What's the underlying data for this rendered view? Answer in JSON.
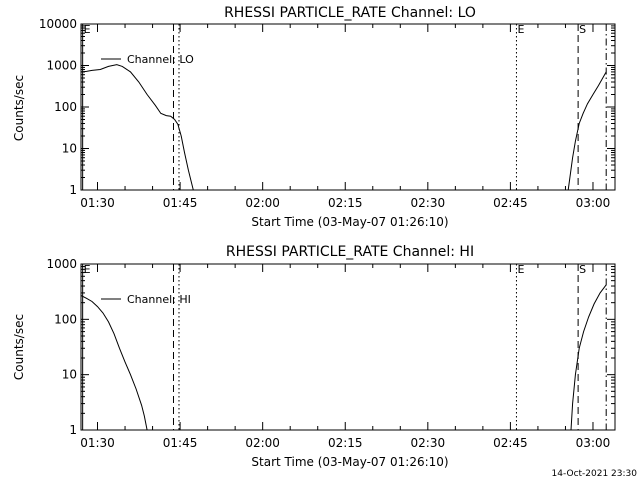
{
  "chart_data": [
    {
      "type": "line",
      "title": "RHESSI PARTICLE_RATE Channel: LO",
      "xlabel": "Start Time (03-May-07 01:26:10)",
      "ylabel": "Counts/sec",
      "yscale": "log",
      "ylim": [
        1,
        10000
      ],
      "xlim_minutes": [
        87,
        184
      ],
      "x_ticks": [
        {
          "label": "01:30",
          "min": 90
        },
        {
          "label": "01:45",
          "min": 105
        },
        {
          "label": "02:00",
          "min": 120
        },
        {
          "label": "02:15",
          "min": 135
        },
        {
          "label": "02:30",
          "min": 150
        },
        {
          "label": "02:45",
          "min": 165
        },
        {
          "label": "03:00",
          "min": 180
        }
      ],
      "y_ticks": [
        {
          "label": "1",
          "value": 1
        },
        {
          "label": "10",
          "value": 10
        },
        {
          "label": "100",
          "value": 100
        },
        {
          "label": "1000",
          "value": 1000
        },
        {
          "label": "10000",
          "value": 10000
        }
      ],
      "legend": {
        "label": "Channel: LO",
        "position": "top-left"
      },
      "markers": [
        {
          "letter": "E",
          "min": 87.3,
          "style": "solid"
        },
        {
          "letter": "",
          "min": 103.8,
          "style": "dashed"
        },
        {
          "letter": "",
          "min": 104.8,
          "style": "dotted"
        },
        {
          "letter": "E",
          "min": 166.1,
          "style": "dotted"
        },
        {
          "letter": "S",
          "min": 177.3,
          "style": "dashed"
        },
        {
          "letter": "",
          "min": 182.4,
          "style": "dashdot"
        }
      ],
      "series": [
        {
          "segments": [
            [
              [
                87,
                700
              ],
              [
                88,
                720
              ],
              [
                89,
                760
              ],
              [
                90.5,
                800
              ],
              [
                92,
                950
              ],
              [
                93.5,
                1050
              ],
              [
                94.5,
                950
              ],
              [
                96,
                700
              ],
              [
                97.5,
                400
              ],
              [
                99,
                200
              ],
              [
                100.5,
                110
              ],
              [
                101.5,
                70
              ],
              [
                102.5,
                62
              ],
              [
                103.3,
                60
              ],
              [
                104,
                50
              ],
              [
                104.6,
                38
              ],
              [
                105.2,
                20
              ],
              [
                105.8,
                8
              ],
              [
                106.5,
                3
              ],
              [
                107.4,
                1
              ]
            ],
            [
              [
                175.5,
                1
              ],
              [
                175.8,
                2
              ],
              [
                176.3,
                6
              ],
              [
                176.8,
                15
              ],
              [
                177.5,
                40
              ],
              [
                178.2,
                70
              ],
              [
                179,
                120
              ],
              [
                180,
                200
              ],
              [
                181,
                330
              ],
              [
                182.4,
                700
              ]
            ]
          ]
        }
      ]
    },
    {
      "type": "line",
      "title": "RHESSI PARTICLE_RATE Channel: HI",
      "xlabel": "Start Time (03-May-07 01:26:10)",
      "ylabel": "Counts/sec",
      "yscale": "log",
      "ylim": [
        1,
        1000
      ],
      "xlim_minutes": [
        87,
        184
      ],
      "x_ticks": [
        {
          "label": "01:30",
          "min": 90
        },
        {
          "label": "01:45",
          "min": 105
        },
        {
          "label": "02:00",
          "min": 120
        },
        {
          "label": "02:15",
          "min": 135
        },
        {
          "label": "02:30",
          "min": 150
        },
        {
          "label": "02:45",
          "min": 165
        },
        {
          "label": "03:00",
          "min": 180
        }
      ],
      "y_ticks": [
        {
          "label": "1",
          "value": 1
        },
        {
          "label": "10",
          "value": 10
        },
        {
          "label": "100",
          "value": 100
        },
        {
          "label": "1000",
          "value": 1000
        }
      ],
      "legend": {
        "label": "Channel: HI",
        "position": "top-left"
      },
      "markers": [
        {
          "letter": "E",
          "min": 87.3,
          "style": "solid"
        },
        {
          "letter": "",
          "min": 103.8,
          "style": "dashed"
        },
        {
          "letter": "",
          "min": 104.8,
          "style": "dotted"
        },
        {
          "letter": "E",
          "min": 166.1,
          "style": "dotted"
        },
        {
          "letter": "S",
          "min": 177.3,
          "style": "dashed"
        },
        {
          "letter": "",
          "min": 182.4,
          "style": "dashdot"
        }
      ],
      "series": [
        {
          "segments": [
            [
              [
                87,
                270
              ],
              [
                88,
                240
              ],
              [
                89,
                210
              ],
              [
                90,
                170
              ],
              [
                91,
                130
              ],
              [
                92,
                90
              ],
              [
                93,
                55
              ],
              [
                94,
                30
              ],
              [
                95,
                17
              ],
              [
                96,
                10
              ],
              [
                97,
                5.5
              ],
              [
                98,
                2.8
              ],
              [
                98.5,
                1.8
              ],
              [
                99,
                1
              ]
            ],
            [
              [
                176,
                1
              ],
              [
                176.3,
                3
              ],
              [
                176.8,
                10
              ],
              [
                177.5,
                30
              ],
              [
                178.3,
                60
              ],
              [
                179.2,
                110
              ],
              [
                180.2,
                190
              ],
              [
                181.3,
                300
              ],
              [
                182.4,
                420
              ]
            ]
          ]
        }
      ]
    }
  ],
  "footer": {
    "timestamp": "14-Oct-2021 23:30"
  }
}
